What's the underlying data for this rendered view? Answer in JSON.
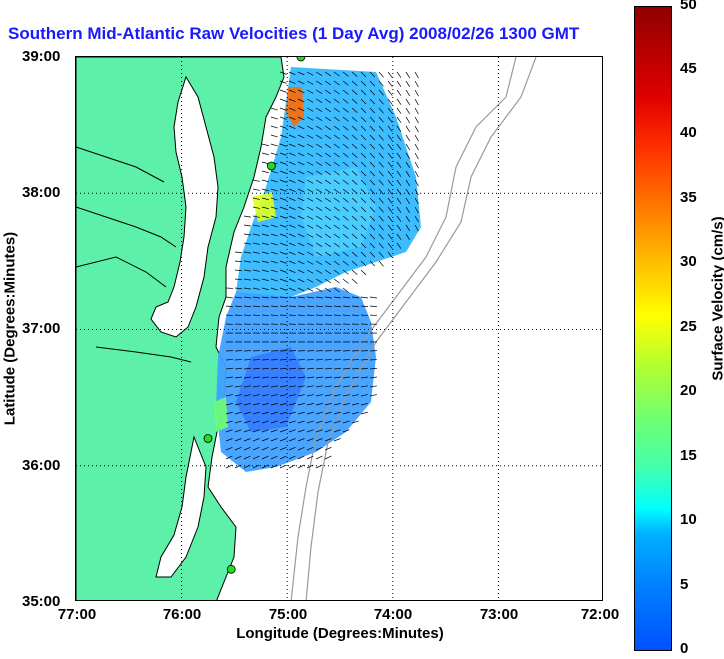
{
  "title": "Southern Mid-Atlantic Raw Velocities (1 Day Avg) 2008/02/26 1300 GMT",
  "axes": {
    "x_title": "Longitude (Degrees:Minutes)",
    "y_title": "Latitude (Degrees:Minutes)",
    "x_ticks": [
      "77:00",
      "76:00",
      "75:00",
      "74:00",
      "73:00",
      "72:00"
    ],
    "y_ticks": [
      "39:00",
      "38:00",
      "37:00",
      "36:00",
      "35:00"
    ]
  },
  "colorbar": {
    "title": "Surface Velocity (cm/s)",
    "ticks": [
      "50",
      "45",
      "40",
      "35",
      "30",
      "25",
      "20",
      "15",
      "10",
      "5",
      "0"
    ],
    "range": [
      0,
      50
    ]
  },
  "colors": {
    "land": "#5cf0a8",
    "water": "#ffffff",
    "coast": "#000000",
    "bathymetry": "#9a9a9a",
    "station": "#22dd22",
    "title": "#1a1aff"
  },
  "map": {
    "lon_range": [
      -77,
      -72
    ],
    "lat_range": [
      35,
      39
    ],
    "stations": [
      {
        "lon": -74.87,
        "lat": 39.0
      },
      {
        "lon": -75.15,
        "lat": 38.2
      },
      {
        "lon": -75.75,
        "lat": 36.2
      },
      {
        "lon": -75.53,
        "lat": 35.24
      }
    ]
  }
}
